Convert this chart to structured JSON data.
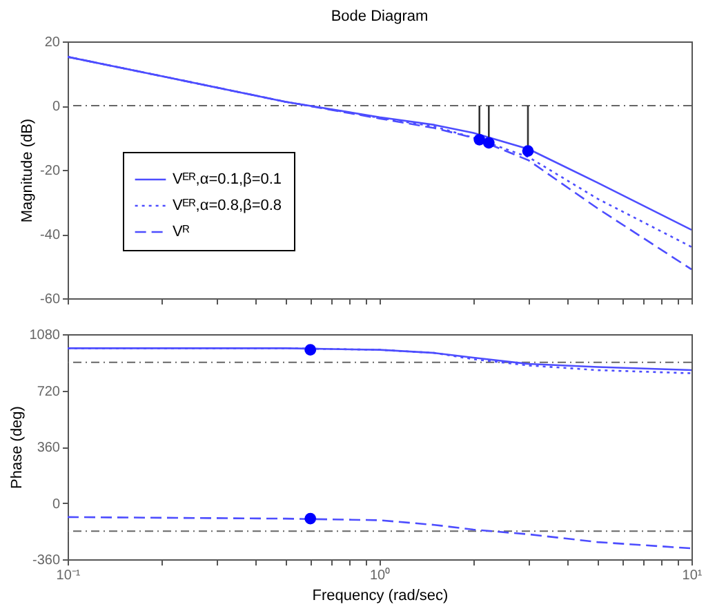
{
  "chart_data": [
    {
      "type": "line",
      "title": "Bode Diagram",
      "ylabel": "Magnitude (dB)",
      "x": [
        0.1,
        0.2,
        0.5,
        1,
        1.5,
        2,
        3,
        5,
        10
      ],
      "xlim": [
        0.1,
        10
      ],
      "xticks": [
        {
          "value": 0.1,
          "label": null
        },
        {
          "value": 0.2,
          "label": null
        },
        {
          "value": 0.3,
          "label": null
        },
        {
          "value": 0.4,
          "label": null
        },
        {
          "value": 0.5,
          "label": null
        },
        {
          "value": 0.6,
          "label": null
        },
        {
          "value": 0.7,
          "label": null
        },
        {
          "value": 0.8,
          "label": null
        },
        {
          "value": 0.9,
          "label": null
        },
        {
          "value": 1,
          "label": null
        },
        {
          "value": 2,
          "label": null
        },
        {
          "value": 3,
          "label": null
        },
        {
          "value": 4,
          "label": null
        },
        {
          "value": 5,
          "label": null
        },
        {
          "value": 6,
          "label": null
        },
        {
          "value": 7,
          "label": null
        },
        {
          "value": 8,
          "label": null
        },
        {
          "value": 9,
          "label": null
        },
        {
          "value": 10,
          "label": null
        }
      ],
      "ylim": [
        -60,
        20
      ],
      "yticks": [
        -60,
        -40,
        -20,
        0,
        20
      ],
      "log": "x",
      "tick_labels": "y",
      "legend": "left",
      "grid": false,
      "ref_lines": [
        {
          "axis": "y",
          "value": 0,
          "color": "#666666",
          "line_style": "dashed"
        }
      ],
      "series": [
        {
          "name": "Vᴱᴿ,α=0.1,β=0.1",
          "color": "#4d4dff",
          "line_style": "solid",
          "values": [
            15.2,
            9.2,
            1.2,
            -3.6,
            -6,
            -8.5,
            -13.5,
            -24,
            -38.7
          ]
        },
        {
          "name": "Vᴱᴿ,α=0.8,β=0.8",
          "color": "#4d4dff",
          "line_style": "dotted",
          "values": [
            15.2,
            9.2,
            1.2,
            -3.8,
            -6.5,
            -10,
            -16,
            -29,
            -44
          ]
        },
        {
          "name": "Vᴿ",
          "color": "#4d4dff",
          "line_style": "dashed",
          "values": [
            15.2,
            9.2,
            1.2,
            -4,
            -7,
            -10,
            -17,
            -32,
            -51
          ]
        },
        {
          "type": "line",
          "color": "#333333",
          "line_style": "solid",
          "x": [
            2.09,
            2.09
          ],
          "values": [
            0,
            -10.6
          ]
        },
        {
          "type": "line",
          "color": "#333333",
          "line_style": "solid",
          "x": [
            2.24,
            2.24
          ],
          "values": [
            0,
            -11.6
          ]
        },
        {
          "type": "line",
          "color": "#333333",
          "line_style": "solid",
          "x": [
            2.99,
            2.99
          ],
          "values": [
            0,
            -14.1
          ]
        },
        {
          "type": "scatter",
          "color": "#0000ff",
          "marker": "circle",
          "x": [
            2.09,
            2.24,
            2.99
          ],
          "values": [
            -10.6,
            -11.6,
            -14.1
          ]
        }
      ]
    },
    {
      "type": "line",
      "ylabel": "Phase (deg)",
      "xlabel": "Frequency  (rad/sec)",
      "x": [
        0.1,
        0.5,
        1,
        1.5,
        2,
        3,
        5,
        10
      ],
      "xlim": [
        0.1,
        10
      ],
      "xticks": [
        {
          "value": 0.1,
          "label": "10⁻¹"
        },
        {
          "value": 0.2,
          "label": null
        },
        {
          "value": 0.3,
          "label": null
        },
        {
          "value": 0.4,
          "label": null
        },
        {
          "value": 0.5,
          "label": null
        },
        {
          "value": 0.6,
          "label": null
        },
        {
          "value": 0.7,
          "label": null
        },
        {
          "value": 0.8,
          "label": null
        },
        {
          "value": 0.9,
          "label": null
        },
        {
          "value": 1,
          "label": "10⁰"
        },
        {
          "value": 2,
          "label": null
        },
        {
          "value": 3,
          "label": null
        },
        {
          "value": 4,
          "label": null
        },
        {
          "value": 5,
          "label": null
        },
        {
          "value": 6,
          "label": null
        },
        {
          "value": 7,
          "label": null
        },
        {
          "value": 8,
          "label": null
        },
        {
          "value": 9,
          "label": null
        },
        {
          "value": 10,
          "label": "10¹"
        }
      ],
      "ylim": [
        -360,
        1080
      ],
      "yticks": [
        -360,
        0,
        360,
        720,
        1080
      ],
      "log": "x",
      "grid": false,
      "ref_lines": [
        {
          "axis": "y",
          "value": 900,
          "color": "#666666",
          "line_style": "dashed"
        },
        {
          "axis": "y",
          "value": -180,
          "color": "#666666",
          "line_style": "dashed"
        }
      ],
      "series": [
        {
          "color": "#4d4dff",
          "line_style": "solid",
          "values": [
            990,
            990,
            980,
            960,
            930,
            890,
            870,
            850
          ]
        },
        {
          "color": "#4d4dff",
          "line_style": "dotted",
          "values": [
            990,
            990,
            980,
            960,
            920,
            880,
            850,
            830
          ]
        },
        {
          "color": "#4d4dff",
          "line_style": "dashed",
          "values": [
            -90,
            -100,
            -110,
            -140,
            -170,
            -200,
            -250,
            -290
          ]
        },
        {
          "type": "scatter",
          "color": "#0000ff",
          "marker": "circle",
          "x": [
            0.6,
            0.6
          ],
          "values": [
            980,
            -100
          ]
        }
      ]
    }
  ]
}
